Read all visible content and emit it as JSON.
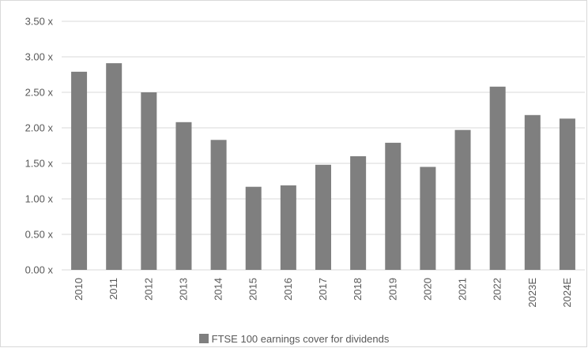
{
  "chart_data": {
    "type": "bar",
    "categories": [
      "2010",
      "2011",
      "2012",
      "2013",
      "2014",
      "2015",
      "2016",
      "2017",
      "2018",
      "2019",
      "2020",
      "2021",
      "2022",
      "2023E",
      "2024E"
    ],
    "series": [
      {
        "name": "FTSE 100 earnings cover for dividends",
        "values": [
          2.79,
          2.91,
          2.5,
          2.08,
          1.83,
          1.17,
          1.19,
          1.48,
          1.6,
          1.79,
          1.45,
          1.97,
          2.58,
          2.18,
          2.13
        ]
      }
    ],
    "ylim": [
      0,
      3.5
    ],
    "yticks": [
      0,
      0.5,
      1.0,
      1.5,
      2.0,
      2.5,
      3.0,
      3.5
    ],
    "ytick_labels": [
      "0.00 x",
      "0.50 x",
      "1.00 x",
      "1.50 x",
      "2.00 x",
      "2.50 x",
      "3.00 x",
      "3.50 x"
    ],
    "grid": true,
    "legend_position": "bottom",
    "bar_color": "#7f7f7f",
    "title": "",
    "xlabel": "",
    "ylabel": ""
  },
  "legend": {
    "label": "FTSE 100 earnings cover for dividends"
  }
}
